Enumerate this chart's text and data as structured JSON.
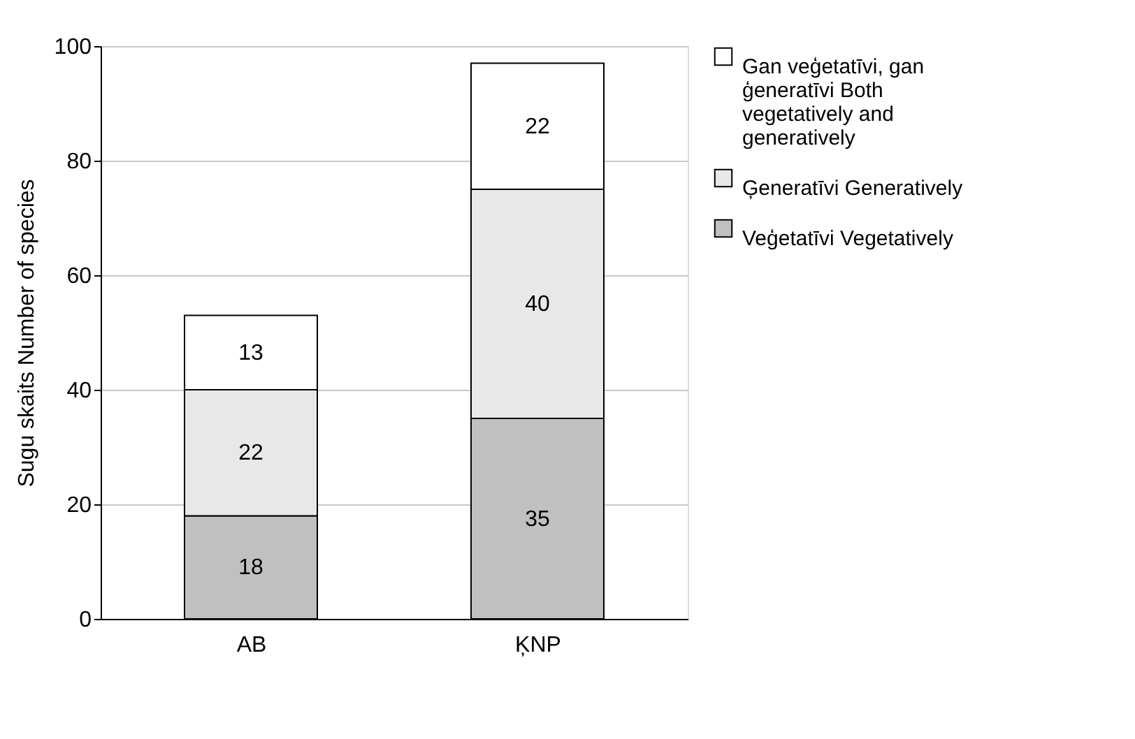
{
  "chart_data": {
    "type": "bar",
    "stacked": true,
    "ylabel": "Sugu skaits Number of species",
    "categories": [
      "AB",
      "ĶNP"
    ],
    "series": [
      {
        "name": "Veģetatīvi Vegetatively",
        "color": "#c0c0c0",
        "values": [
          18,
          35
        ]
      },
      {
        "name": "Ģeneratīvi Generatively",
        "color": "#e8e8e8",
        "values": [
          22,
          40
        ]
      },
      {
        "name": "Gan veģetatīvi, gan ģeneratīvi Both vegetatively and generatively",
        "color": "#ffffff",
        "values": [
          13,
          22
        ]
      }
    ],
    "ylim": [
      0,
      100
    ],
    "yticks": [
      0,
      20,
      40,
      60,
      80,
      100
    ],
    "grid": "y",
    "legend": "right",
    "data_labels": true
  }
}
